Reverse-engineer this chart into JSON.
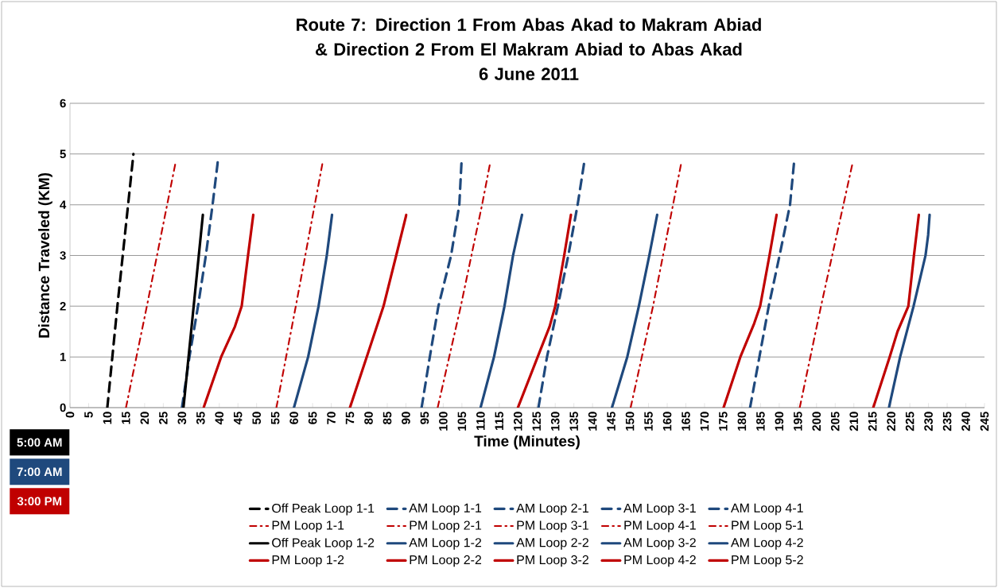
{
  "chart_data": {
    "type": "line",
    "title": "Route 7: Direction 1 From Abas Akad to Makram Abiad & Direction 2 From El Makram Abiad to Abas Akad",
    "subtitle": "6 June 2011",
    "xlabel": "Time (Minutes)",
    "ylabel": "Distance Traveled (KM)",
    "xlim": [
      0,
      245
    ],
    "ylim": [
      0,
      6
    ],
    "xticks": [
      0,
      5,
      10,
      15,
      20,
      25,
      30,
      35,
      40,
      45,
      50,
      55,
      60,
      65,
      70,
      75,
      80,
      85,
      90,
      95,
      100,
      105,
      110,
      115,
      120,
      125,
      130,
      135,
      140,
      145,
      150,
      155,
      160,
      165,
      170,
      175,
      180,
      185,
      190,
      195,
      200,
      205,
      210,
      215,
      220,
      225,
      230,
      235,
      240,
      245
    ],
    "yticks": [
      0,
      1,
      2,
      3,
      4,
      5,
      6
    ],
    "grid": "y",
    "legend": "bottom",
    "marker": "none",
    "annotations": [
      "5:00 AM",
      "7:00 AM",
      "3:00 PM"
    ],
    "series": [
      {
        "name": "Off Peak Loop 1-1",
        "color": "#000000",
        "line_style": "dashed",
        "x": [
          10,
          12.7,
          17
        ],
        "values": [
          0,
          2,
          5
        ]
      },
      {
        "name": "AM Loop 1-1",
        "color": "#1f497d",
        "line_style": "dashed",
        "x": [
          30,
          32,
          34.3,
          36.4,
          38.2,
          39.6
        ],
        "values": [
          0,
          1,
          2,
          3,
          4,
          4.85
        ]
      },
      {
        "name": "AM Loop 2-1",
        "color": "#1f497d",
        "line_style": "dashed",
        "x": [
          94.2,
          96.4,
          98.7,
          102.1,
          104.3,
          104.9
        ],
        "values": [
          0,
          1,
          2,
          3,
          4,
          4.85
        ]
      },
      {
        "name": "AM Loop 3-1",
        "color": "#1f497d",
        "line_style": "dashed",
        "x": [
          125.5,
          127.8,
          130.7,
          133.5,
          136,
          137.8
        ],
        "values": [
          0,
          1,
          2,
          3,
          4,
          4.85
        ]
      },
      {
        "name": "AM Loop 4-1",
        "color": "#1f497d",
        "line_style": "dashed",
        "x": [
          182.2,
          184.7,
          187.2,
          190.1,
          192.9,
          194
        ],
        "values": [
          0,
          1,
          2,
          3,
          4,
          4.85
        ]
      },
      {
        "name": "PM Loop 1-1",
        "color": "#c00000",
        "line_style": "dotted",
        "x": [
          15,
          20.6,
          28.2
        ],
        "values": [
          0,
          2,
          4.8
        ]
      },
      {
        "name": "PM Loop 2-1",
        "color": "#c00000",
        "line_style": "dotted",
        "x": [
          55.3,
          60.5,
          67.6
        ],
        "values": [
          0,
          2,
          4.8
        ]
      },
      {
        "name": "PM Loop 3-1",
        "color": "#c00000",
        "line_style": "dotted",
        "x": [
          98.5,
          104.7,
          110.4,
          112.5
        ],
        "values": [
          0,
          2,
          4,
          4.8
        ]
      },
      {
        "name": "PM Loop 4-1",
        "color": "#c00000",
        "line_style": "dotted",
        "x": [
          150.2,
          156.2,
          163.7
        ],
        "values": [
          0,
          2,
          4.8
        ]
      },
      {
        "name": "PM Loop 5-1",
        "color": "#c00000",
        "line_style": "dotted",
        "x": [
          195.5,
          201.2,
          209.6
        ],
        "values": [
          0,
          2,
          4.8
        ]
      },
      {
        "name": "Off Peak Loop 1-2",
        "color": "#000000",
        "line_style": "solid",
        "x": [
          30.4,
          35.6
        ],
        "values": [
          0,
          3.8
        ]
      },
      {
        "name": "AM Loop 1-2",
        "color": "#1f497d",
        "line_style": "solid",
        "x": [
          60,
          63.8,
          66.6,
          68.8,
          70.2
        ],
        "values": [
          0,
          1,
          2,
          3,
          3.8
        ]
      },
      {
        "name": "AM Loop 2-2",
        "color": "#1f497d",
        "line_style": "solid",
        "x": [
          110,
          113.6,
          116.4,
          118.7,
          121.1
        ],
        "values": [
          0,
          1,
          2,
          3,
          3.8
        ]
      },
      {
        "name": "AM Loop 3-2",
        "color": "#1f497d",
        "line_style": "solid",
        "x": [
          145.2,
          149.3,
          152.4,
          155.2,
          157.3
        ],
        "values": [
          0,
          1,
          2,
          3,
          3.8
        ]
      },
      {
        "name": "AM Loop 4-2",
        "color": "#1f497d",
        "line_style": "solid",
        "x": [
          219.4,
          222.4,
          226,
          229.2,
          229.9,
          230.3
        ],
        "values": [
          0,
          1,
          2,
          3,
          3.4,
          3.8
        ]
      },
      {
        "name": "PM Loop 1-2",
        "color": "#c00000",
        "line_style": "solid",
        "x": [
          35.8,
          40.5,
          44.2,
          46,
          47.7,
          49.1
        ],
        "values": [
          0,
          1,
          1.6,
          2,
          3,
          3.8
        ]
      },
      {
        "name": "PM Loop 2-2",
        "color": "#c00000",
        "line_style": "solid",
        "x": [
          75,
          79.5,
          84,
          87.4,
          90.1
        ],
        "values": [
          0,
          1,
          2,
          3,
          3.8
        ]
      },
      {
        "name": "PM Loop 3-2",
        "color": "#c00000",
        "line_style": "solid",
        "x": [
          120,
          125.3,
          128.5,
          130,
          132.4,
          134.2
        ],
        "values": [
          0,
          1,
          1.6,
          2,
          3,
          3.8
        ]
      },
      {
        "name": "PM Loop 4-2",
        "color": "#c00000",
        "line_style": "solid",
        "x": [
          175.1,
          179.6,
          183.3,
          184.9,
          187.4,
          189.3
        ],
        "values": [
          0,
          1,
          1.66,
          2,
          3,
          3.8
        ]
      },
      {
        "name": "PM Loop 5-2",
        "color": "#c00000",
        "line_style": "solid",
        "x": [
          215.2,
          219.6,
          221.7,
          224.6,
          226.1,
          227.4
        ],
        "values": [
          0,
          1,
          1.5,
          2,
          3,
          3.8
        ]
      }
    ]
  }
}
